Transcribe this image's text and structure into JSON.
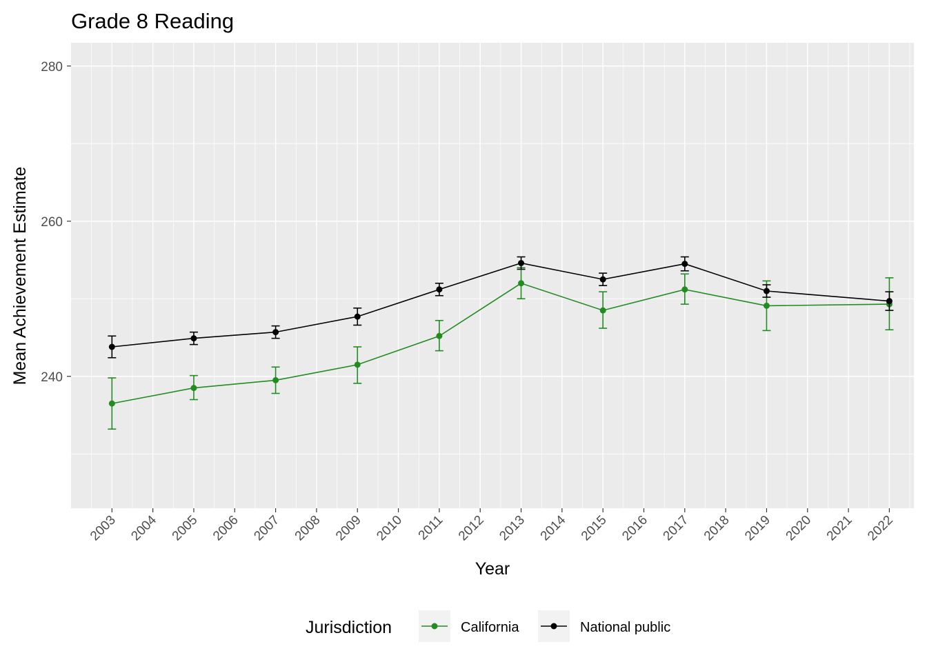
{
  "chart_data": {
    "type": "line",
    "title": "Grade 8 Reading",
    "xlabel": "Year",
    "ylabel": "Mean Achievement Estimate",
    "x_ticks": [
      "2003",
      "2004",
      "2005",
      "2006",
      "2007",
      "2008",
      "2009",
      "2010",
      "2011",
      "2012",
      "2013",
      "2014",
      "2015",
      "2016",
      "2017",
      "2018",
      "2019",
      "2020",
      "2021",
      "2022"
    ],
    "y_ticks": [
      240,
      260,
      280
    ],
    "ylim": [
      223,
      283
    ],
    "xlim": [
      2002.0,
      2022.6
    ],
    "grid": true,
    "error_bars": true,
    "legend": {
      "title": "Jurisdiction",
      "position": "bottom"
    },
    "series": [
      {
        "name": "California",
        "color": "#228B22",
        "x": [
          2003,
          2005,
          2007,
          2009,
          2011,
          2013,
          2015,
          2017,
          2019,
          2022
        ],
        "y": [
          236.5,
          238.5,
          239.5,
          241.5,
          245.2,
          252.0,
          248.5,
          251.2,
          249.1,
          249.3
        ],
        "lower": [
          233.2,
          237.0,
          237.8,
          239.1,
          243.3,
          250.0,
          246.2,
          249.3,
          245.9,
          246.0
        ],
        "upper": [
          239.8,
          240.1,
          241.2,
          243.8,
          247.2,
          254.0,
          250.9,
          253.2,
          252.3,
          252.7
        ]
      },
      {
        "name": "National public",
        "color": "#000000",
        "x": [
          2003,
          2005,
          2007,
          2009,
          2011,
          2013,
          2015,
          2017,
          2019,
          2022
        ],
        "y": [
          243.8,
          244.9,
          245.7,
          247.7,
          251.2,
          254.6,
          252.5,
          254.5,
          251.0,
          249.7
        ],
        "lower": [
          242.4,
          244.1,
          244.9,
          246.6,
          250.4,
          253.8,
          251.7,
          253.6,
          250.2,
          248.5
        ],
        "upper": [
          245.2,
          245.7,
          246.5,
          248.8,
          252.0,
          255.4,
          253.3,
          255.4,
          251.8,
          250.9
        ]
      }
    ]
  }
}
